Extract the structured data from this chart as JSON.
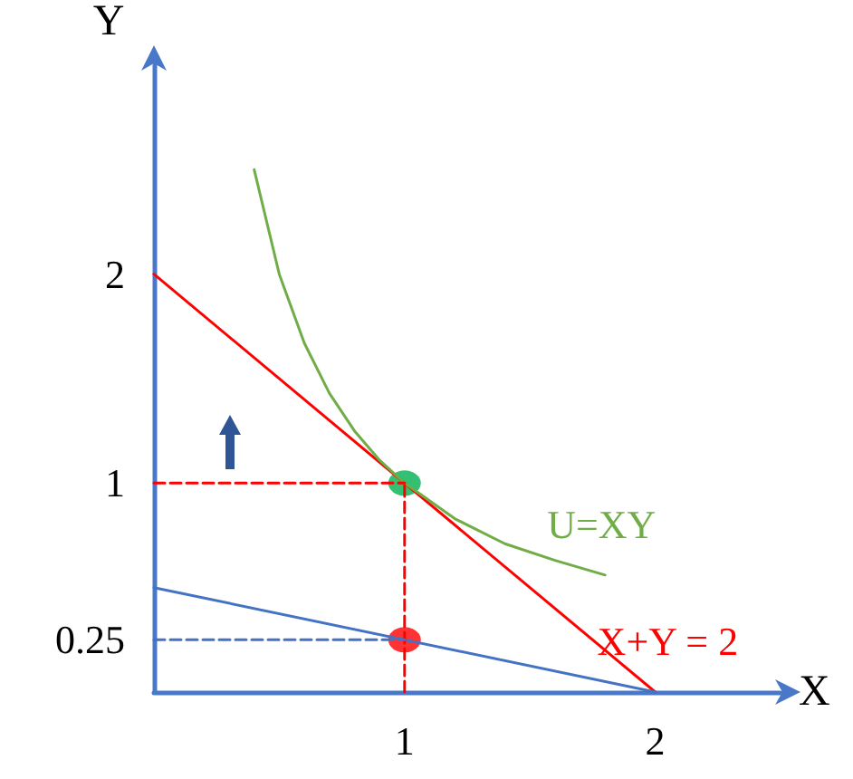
{
  "chart_data": {
    "type": "line",
    "xlabel": "X",
    "ylabel": "Y",
    "xlim": [
      0,
      2.5
    ],
    "ylim": [
      0,
      3
    ],
    "xticks": [
      1,
      2
    ],
    "yticks": [
      0.25,
      1,
      2
    ],
    "grid": false,
    "legend": false,
    "marker": "none",
    "series": [
      {
        "name": "X+Y = 2",
        "color": "#ff0000",
        "x": [
          0,
          2
        ],
        "values": [
          2,
          0
        ]
      },
      {
        "color": "#4472c4",
        "x": [
          0,
          2
        ],
        "values": [
          0.5,
          0
        ]
      },
      {
        "name": "U=XY",
        "color": "#70ad47",
        "x": [
          0.4,
          0.5,
          0.6,
          0.7,
          0.8,
          0.9,
          1,
          1.2,
          1.4,
          1.6,
          1.8
        ],
        "values": [
          2.5,
          2,
          1.67,
          1.43,
          1.25,
          1.11,
          1,
          0.83,
          0.71,
          0.63,
          0.56
        ]
      },
      {
        "color": "#ff0000",
        "line_style": "dashed",
        "x": [
          0,
          1
        ],
        "values": [
          1,
          1
        ]
      },
      {
        "color": "#ff0000",
        "line_style": "dashed",
        "x": [
          1,
          1
        ],
        "values": [
          0,
          1
        ]
      },
      {
        "color": "#4472c4",
        "line_style": "dashed",
        "x": [
          0,
          1
        ],
        "values": [
          0.25,
          0.25
        ]
      },
      {
        "type": "scatter",
        "marker": "circle",
        "color": "#00b050",
        "x": [
          1
        ],
        "values": [
          1
        ]
      },
      {
        "type": "scatter",
        "marker": "circle",
        "color": "#ff0000",
        "x": [
          1
        ],
        "values": [
          0.25
        ]
      }
    ]
  }
}
